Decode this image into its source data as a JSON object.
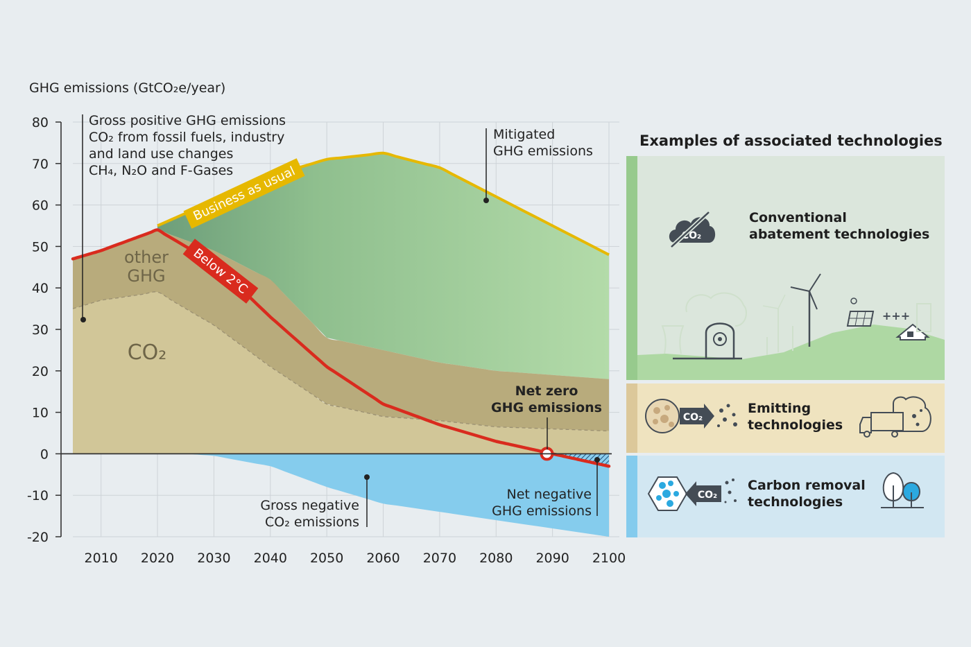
{
  "chart_data": {
    "type": "area",
    "ylabel": "GHG emissions (GtCO₂e/year)",
    "xlim": [
      2005,
      2100
    ],
    "ylim": [
      -20,
      80
    ],
    "y_ticks": [
      "80",
      "70",
      "60",
      "50",
      "40",
      "30",
      "20",
      "10",
      "0",
      "-10",
      "-20"
    ],
    "x_ticks": [
      "2010",
      "2020",
      "2030",
      "2040",
      "2050",
      "2060",
      "2070",
      "2080",
      "2090",
      "2100"
    ],
    "grid": true,
    "series": [
      {
        "name": "Business as usual",
        "color": "#e6b800",
        "x": [
          2020,
          2030,
          2040,
          2050,
          2060,
          2070,
          2080,
          2090,
          2100
        ],
        "values": [
          55,
          61,
          67,
          71,
          72.5,
          69,
          62,
          55,
          48
        ]
      },
      {
        "name": "Below 2°C",
        "color": "#d92b1e",
        "x": [
          2005,
          2010,
          2020,
          2030,
          2040,
          2050,
          2060,
          2070,
          2080,
          2090,
          2100
        ],
        "values": [
          47,
          49,
          54,
          46,
          33,
          21,
          12,
          7,
          3,
          0,
          -3
        ]
      },
      {
        "name": "other GHG",
        "color": "#b8ab7c",
        "x": [
          2005,
          2010,
          2020,
          2030,
          2040,
          2050,
          2060,
          2070,
          2080,
          2090,
          2100
        ],
        "values": [
          47,
          49,
          54,
          49,
          42,
          28,
          25,
          22,
          20,
          19,
          18
        ]
      },
      {
        "name": "CO₂",
        "color": "#d1c698",
        "x": [
          2005,
          2010,
          2020,
          2030,
          2040,
          2050,
          2060,
          2070,
          2080,
          2090,
          2100
        ],
        "values": [
          35,
          37,
          39,
          31,
          21,
          12,
          9,
          8,
          6.5,
          6,
          5.5
        ]
      },
      {
        "name": "Gross negative CO₂ emissions",
        "color": "#85cced",
        "x": [
          2025,
          2030,
          2040,
          2050,
          2060,
          2070,
          2080,
          2090,
          2100
        ],
        "values": [
          0,
          -0.5,
          -3,
          -8,
          -12,
          -14,
          -16,
          -18,
          -20
        ]
      }
    ],
    "annotations": {
      "gross_positive": [
        "Gross positive GHG emissions",
        "CO₂ from fossil fuels, industry",
        "and land use changes",
        "CH₄, N₂O and F-Gases"
      ],
      "mitigated": [
        "Mitigated",
        "GHG emissions"
      ],
      "net_zero": [
        "Net zero",
        "GHG emissions"
      ],
      "net_negative": [
        "Net negative",
        "GHG emissions"
      ],
      "gross_negative": [
        "Gross negative",
        "CO₂ emissions"
      ],
      "other_ghg": [
        "other",
        "GHG"
      ],
      "co2": "CO₂"
    }
  },
  "panel": {
    "title": "Examples of associated technologies",
    "conventional": [
      "Conventional",
      "abatement technologies"
    ],
    "emitting": [
      "Emitting",
      "technologies"
    ],
    "removal": [
      "Carbon removal",
      "technologies"
    ],
    "co2_tag": "CO₂",
    "plus_signs": "+++"
  }
}
